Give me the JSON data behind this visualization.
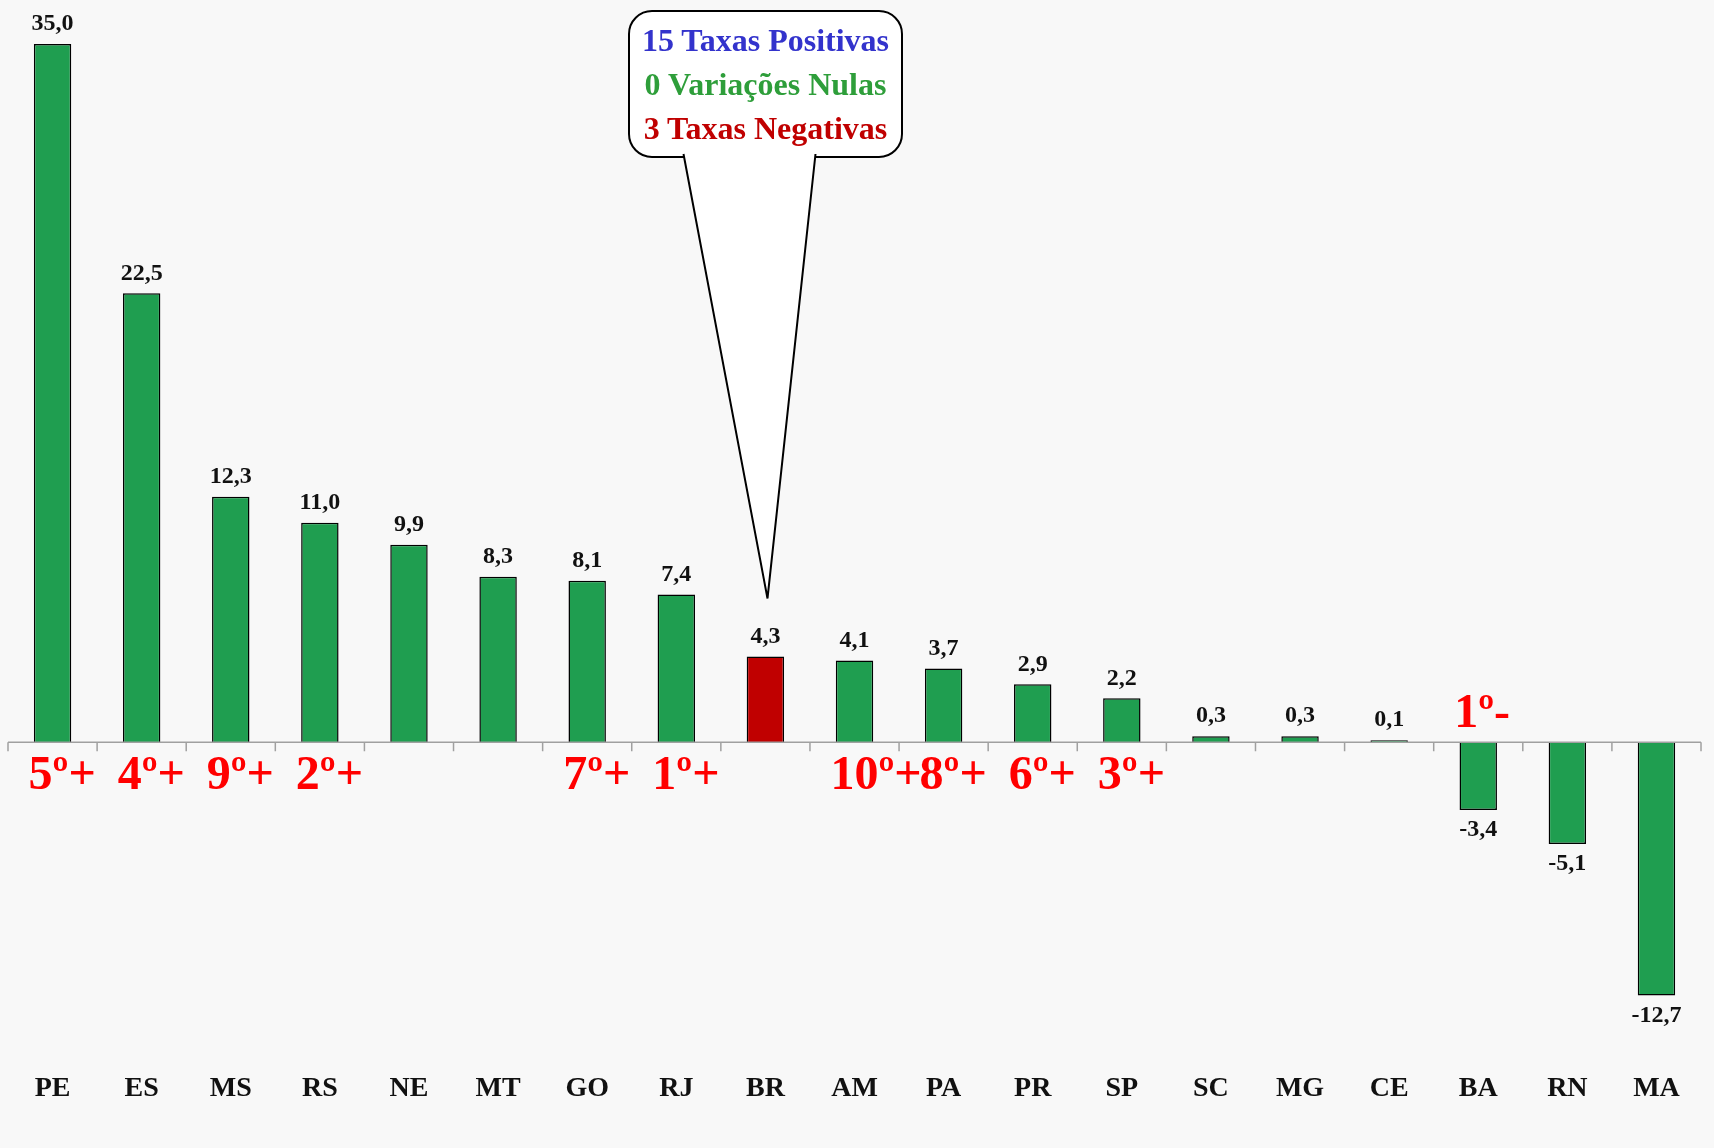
{
  "chart_data": {
    "type": "bar",
    "categories": [
      "PE",
      "ES",
      "MS",
      "RS",
      "NE",
      "MT",
      "GO",
      "RJ",
      "BR",
      "AM",
      "PA",
      "PR",
      "SP",
      "SC",
      "MG",
      "CE",
      "BA",
      "RN",
      "MA"
    ],
    "values": [
      35.0,
      22.5,
      12.3,
      11.0,
      9.9,
      8.3,
      8.1,
      7.4,
      4.3,
      4.1,
      3.7,
      2.9,
      2.2,
      0.3,
      0.3,
      0.1,
      -3.4,
      -5.1,
      -12.7
    ],
    "value_labels": [
      "35,0",
      "22,5",
      "12,3",
      "11,0",
      "9,9",
      "8,3",
      "8,1",
      "7,4",
      "4,3",
      "4,1",
      "3,7",
      "2,9",
      "2,2",
      "0,3",
      "0,3",
      "0,1",
      "-3,4",
      "-5,1",
      "-12,7"
    ],
    "colors": [
      "#1f9e50",
      "#1f9e50",
      "#1f9e50",
      "#1f9e50",
      "#1f9e50",
      "#1f9e50",
      "#1f9e50",
      "#1f9e50",
      "#c00000",
      "#1f9e50",
      "#1f9e50",
      "#1f9e50",
      "#1f9e50",
      "#1f9e50",
      "#1f9e50",
      "#1f9e50",
      "#1f9e50",
      "#1f9e50",
      "#1f9e50"
    ],
    "grid": false,
    "legend": false,
    "annotations": [
      "15 Taxas Positivas",
      "0 Variações Nulas",
      "3 Taxas Negativas",
      "5º+",
      "4º+",
      "9º+",
      "2º+",
      "7º+",
      "1º+",
      "10º+",
      "8º+",
      "6º+",
      "3º+",
      "1º-"
    ]
  }
}
